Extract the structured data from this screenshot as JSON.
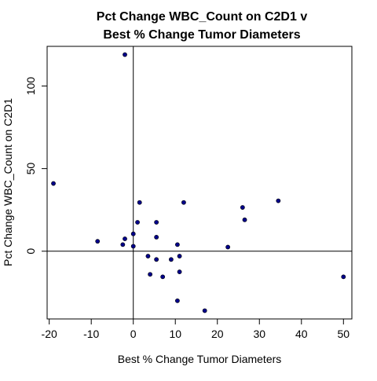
{
  "chart_data": {
    "type": "scatter",
    "title_lines": [
      "Pct Change WBC_Count on C2D1 v",
      "Best % Change Tumor Diameters"
    ],
    "xlabel": "Best % Change Tumor Diameters",
    "ylabel": "Pct Change WBC_Count on C2D1",
    "xlim": [
      -20.5,
      52
    ],
    "ylim": [
      -41,
      124
    ],
    "x_ticks": [
      -20,
      -10,
      0,
      10,
      20,
      30,
      40,
      50
    ],
    "x_tick_labels": [
      "-20",
      "-10",
      "0",
      "10",
      "20",
      "30",
      "40",
      "50"
    ],
    "y_ticks": [
      0,
      50,
      100
    ],
    "y_tick_labels": [
      "0",
      "50",
      "100"
    ],
    "reference_lines": {
      "x": 0,
      "y": 0
    },
    "grid": false,
    "point_color": "#00008B",
    "points": [
      {
        "x": -19.0,
        "y": 41
      },
      {
        "x": -8.5,
        "y": 6
      },
      {
        "x": -2.0,
        "y": 119
      },
      {
        "x": -2.5,
        "y": 4
      },
      {
        "x": -2.0,
        "y": 7.5
      },
      {
        "x": 0.0,
        "y": 10.5
      },
      {
        "x": 0.0,
        "y": 3
      },
      {
        "x": 1.0,
        "y": 17.5
      },
      {
        "x": 1.5,
        "y": 29.5
      },
      {
        "x": 3.5,
        "y": -3
      },
      {
        "x": 4.0,
        "y": -14
      },
      {
        "x": 5.5,
        "y": 17.5
      },
      {
        "x": 5.5,
        "y": 8.5
      },
      {
        "x": 5.5,
        "y": -5
      },
      {
        "x": 7.0,
        "y": -15.5
      },
      {
        "x": 9.0,
        "y": -5
      },
      {
        "x": 10.5,
        "y": 4
      },
      {
        "x": 10.5,
        "y": -30
      },
      {
        "x": 11.0,
        "y": -3
      },
      {
        "x": 11.0,
        "y": -12.5
      },
      {
        "x": 12.0,
        "y": 29.5
      },
      {
        "x": 17.0,
        "y": -36
      },
      {
        "x": 22.5,
        "y": 2.5
      },
      {
        "x": 26.0,
        "y": 26.5
      },
      {
        "x": 26.5,
        "y": 19
      },
      {
        "x": 34.5,
        "y": 30.5
      },
      {
        "x": 50.0,
        "y": -15.5
      }
    ]
  }
}
